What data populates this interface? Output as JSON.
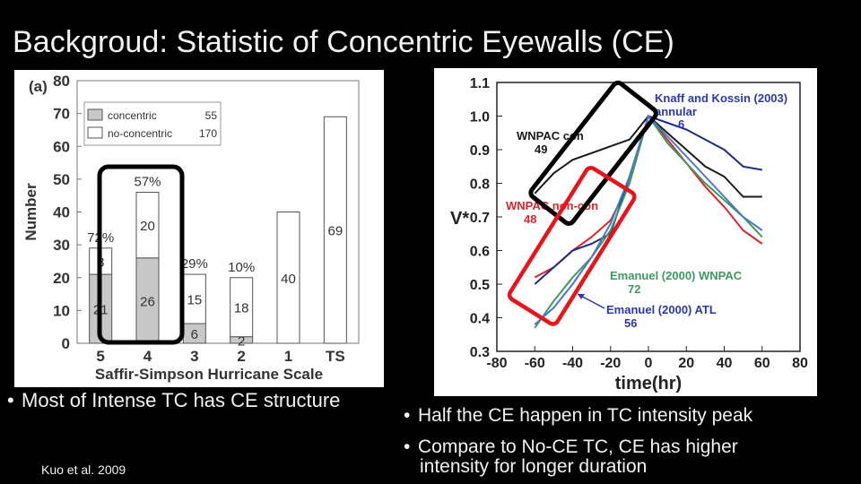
{
  "slide": {
    "title": "Backgroud: Statistic of Concentric Eyewalls (CE)",
    "bullet_left": "Most of Intense TC has CE structure",
    "bullet_right_1": "Half the CE happen in TC intensity peak",
    "bullet_right_2a": "Compare to No-CE TC, CE has higher",
    "bullet_right_2b": "intensity for longer duration",
    "citation_author": "Kuo et al.",
    "citation_year": "2009",
    "highlight_colors": {
      "black_box": "#000000",
      "red_box": "#e8141b"
    }
  },
  "chart_data": [
    {
      "type": "bar",
      "panel_label": "(a)",
      "xlabel": "Saffir-Simpson Hurricane Scale",
      "ylabel": "Number",
      "categories": [
        "5",
        "4",
        "3",
        "2",
        "1",
        "TS"
      ],
      "ylim": [
        0,
        80
      ],
      "yticks": [
        "0",
        "10",
        "20",
        "30",
        "40",
        "50",
        "60",
        "70",
        "80"
      ],
      "stacked": true,
      "series": [
        {
          "name": "concentric",
          "values": [
            21,
            26,
            6,
            2,
            0,
            0
          ],
          "color": "#c8c8c8"
        },
        {
          "name": "no-concentric",
          "values": [
            8,
            20,
            15,
            18,
            40,
            69
          ],
          "color": "#ffffff"
        }
      ],
      "legend": [
        {
          "name": "concentric",
          "count": "55"
        },
        {
          "name": "no-concentric",
          "count": "170"
        }
      ],
      "legend_position": "top-left",
      "percent_labels": [
        "72%",
        "57%",
        "29%",
        "10%",
        "",
        ""
      ],
      "segment_labels": {
        "concentric": [
          "21",
          "26",
          "6",
          "2",
          "",
          ""
        ],
        "no-concentric": [
          "8",
          "20",
          "15",
          "18",
          "40",
          "69"
        ]
      }
    },
    {
      "type": "line",
      "xlabel": "time(hr)",
      "ylabel": "V*",
      "xlim": [
        -80,
        80
      ],
      "ylim": [
        0.3,
        1.1
      ],
      "xticks": [
        "-80",
        "-60",
        "-40",
        "-20",
        "0",
        "20",
        "40",
        "60",
        "80"
      ],
      "yticks": [
        "0.3",
        "0.4",
        "0.5",
        "0.6",
        "0.7",
        "0.8",
        "0.9",
        "1.0",
        "1.1"
      ],
      "series": [
        {
          "name": "WNPAC con",
          "n": "49",
          "color": "#1a1a1a",
          "points": [
            [
              -60,
              0.77
            ],
            [
              -50,
              0.83
            ],
            [
              -40,
              0.87
            ],
            [
              -30,
              0.89
            ],
            [
              -20,
              0.91
            ],
            [
              -10,
              0.93
            ],
            [
              0,
              1.0
            ],
            [
              10,
              0.95
            ],
            [
              20,
              0.9
            ],
            [
              30,
              0.85
            ],
            [
              40,
              0.82
            ],
            [
              50,
              0.76
            ],
            [
              60,
              0.76
            ]
          ]
        },
        {
          "name": "WNPAC non-con",
          "n": "48",
          "color": "#d9262e",
          "points": [
            [
              -60,
              0.52
            ],
            [
              -50,
              0.55
            ],
            [
              -40,
              0.6
            ],
            [
              -30,
              0.64
            ],
            [
              -20,
              0.69
            ],
            [
              -10,
              0.8
            ],
            [
              0,
              1.0
            ],
            [
              10,
              0.93
            ],
            [
              20,
              0.86
            ],
            [
              30,
              0.79
            ],
            [
              40,
              0.73
            ],
            [
              50,
              0.66
            ],
            [
              60,
              0.62
            ]
          ]
        },
        {
          "name": "Knaff and Kossin (2003) annular",
          "n": "6",
          "color": "#1f2a8c",
          "points": [
            [
              -60,
              0.5
            ],
            [
              -50,
              0.55
            ],
            [
              -40,
              0.6
            ],
            [
              -30,
              0.62
            ],
            [
              -20,
              0.65
            ],
            [
              -10,
              0.82
            ],
            [
              0,
              1.0
            ],
            [
              10,
              0.98
            ],
            [
              20,
              0.96
            ],
            [
              30,
              0.93
            ],
            [
              40,
              0.9
            ],
            [
              50,
              0.85
            ],
            [
              60,
              0.84
            ]
          ]
        },
        {
          "name": "Emanuel (2000) WNPAC",
          "n": "72",
          "color": "#3c9a60",
          "points": [
            [
              -60,
              0.37
            ],
            [
              -50,
              0.45
            ],
            [
              -40,
              0.52
            ],
            [
              -30,
              0.58
            ],
            [
              -20,
              0.66
            ],
            [
              -10,
              0.8
            ],
            [
              0,
              1.0
            ],
            [
              10,
              0.92
            ],
            [
              20,
              0.86
            ],
            [
              30,
              0.8
            ],
            [
              40,
              0.75
            ],
            [
              50,
              0.7
            ],
            [
              60,
              0.64
            ]
          ]
        },
        {
          "name": "Emanuel (2000) ATL",
          "n": "56",
          "color": "#4a78c8",
          "points": [
            [
              -60,
              0.38
            ],
            [
              -50,
              0.43
            ],
            [
              -40,
              0.5
            ],
            [
              -30,
              0.58
            ],
            [
              -20,
              0.68
            ],
            [
              -10,
              0.82
            ],
            [
              0,
              1.0
            ],
            [
              10,
              0.94
            ],
            [
              20,
              0.88
            ],
            [
              30,
              0.82
            ],
            [
              40,
              0.76
            ],
            [
              50,
              0.7
            ],
            [
              60,
              0.66
            ]
          ]
        }
      ],
      "annotations": [
        {
          "line1": "Knaff and Kossin (2003)",
          "line2": "annular",
          "line3": "6",
          "color": "#2b3aa8"
        },
        {
          "line1": "WNPAC con",
          "line2": "49",
          "color": "#1a1a1a"
        },
        {
          "line1": "WNPAC non-con",
          "line2": "48",
          "color": "#d9262e"
        },
        {
          "line1": "Emanuel (2000) WNPAC",
          "line2": "72",
          "color": "#3c9a60"
        },
        {
          "line1": "Emanuel (2000) ATL",
          "line2": "56",
          "color": "#2b3aa8"
        }
      ]
    }
  ]
}
